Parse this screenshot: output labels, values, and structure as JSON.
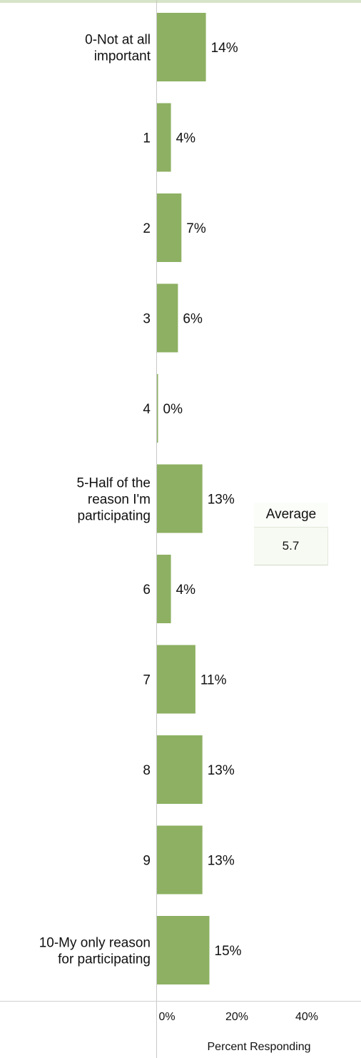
{
  "chart_data": {
    "type": "bar",
    "orientation": "horizontal",
    "categories": [
      [
        "0-Not at all",
        "important"
      ],
      [
        "1"
      ],
      [
        "2"
      ],
      [
        "3"
      ],
      [
        "4"
      ],
      [
        "5-Half of the",
        "reason I'm",
        "participating"
      ],
      [
        "6"
      ],
      [
        "7"
      ],
      [
        "8"
      ],
      [
        "9"
      ],
      [
        "10-My only reason",
        "for participating"
      ]
    ],
    "values": [
      14,
      4,
      7,
      6,
      0,
      13,
      4,
      11,
      13,
      13,
      15
    ],
    "value_labels": [
      "14%",
      "4%",
      "7%",
      "6%",
      "0%",
      "13%",
      "4%",
      "11%",
      "13%",
      "13%",
      "15%"
    ],
    "xlim": [
      0,
      50
    ],
    "x_ticks": [
      0,
      20,
      40
    ],
    "x_tick_labels": [
      "0%",
      "20%",
      "40%"
    ],
    "xlabel": "Percent Responding",
    "bar_color": "#8db062",
    "grid": false
  },
  "summary": {
    "label": "Average",
    "value": "5.7"
  }
}
